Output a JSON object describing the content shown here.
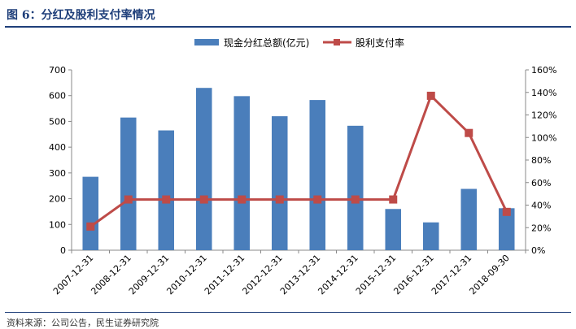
{
  "figure": {
    "title": "图 6：分红及股利支付率情况",
    "source": "资料来源：公司公告，民生证券研究院"
  },
  "chart_data": {
    "type": "bar+line",
    "categories": [
      "2007-12-31",
      "2008-12-31",
      "2009-12-31",
      "2010-12-31",
      "2011-12-31",
      "2012-12-31",
      "2013-12-31",
      "2014-12-31",
      "2015-12-31",
      "2016-12-31",
      "2017-12-31",
      "2018-09-30"
    ],
    "series": [
      {
        "name": "现金分红总额(亿元)",
        "type": "bar",
        "axis": "left",
        "values": [
          285,
          515,
          465,
          630,
          598,
          520,
          583,
          483,
          160,
          108,
          238,
          163
        ]
      },
      {
        "name": "股利支付率",
        "type": "line",
        "axis": "right",
        "values": [
          0.21,
          0.45,
          0.45,
          0.45,
          0.45,
          0.45,
          0.45,
          0.45,
          0.45,
          1.37,
          1.04,
          0.34
        ]
      }
    ],
    "y_left": {
      "min": 0,
      "max": 700,
      "ticks": [
        "0",
        "100",
        "200",
        "300",
        "400",
        "500",
        "600",
        "700"
      ]
    },
    "y_right": {
      "min": 0,
      "max": 1.6,
      "ticks": [
        "0%",
        "20%",
        "40%",
        "60%",
        "80%",
        "100%",
        "120%",
        "140%",
        "160%"
      ]
    },
    "legend_position": "top-center",
    "grid": false,
    "colors": {
      "bar": "#4a7ebb",
      "line": "#be4b48"
    }
  }
}
